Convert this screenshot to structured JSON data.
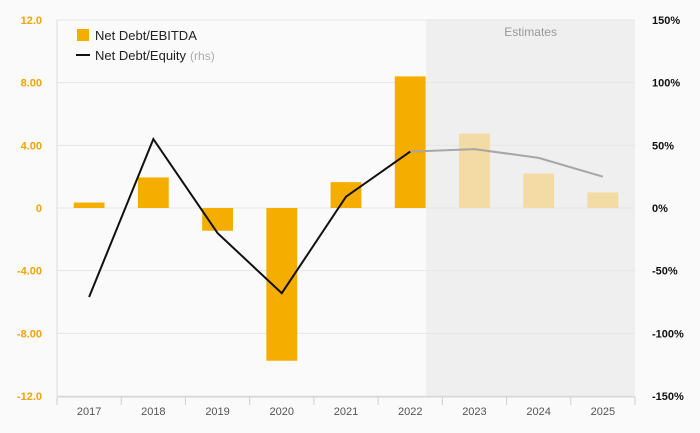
{
  "chart_data": {
    "type": "bar",
    "categories": [
      "2017",
      "2018",
      "2019",
      "2020",
      "2021",
      "2022",
      "2023",
      "2024",
      "2025"
    ],
    "series": [
      {
        "name": "Net Debt/EBITDA",
        "type": "bar",
        "axis": "left",
        "values": [
          0.35,
          1.95,
          -1.45,
          -9.75,
          1.65,
          8.4,
          4.75,
          2.2,
          1.0
        ],
        "estimate_from_index": 6
      },
      {
        "name": "Net Debt/Equity",
        "name_suffix": "(rhs)",
        "type": "line",
        "axis": "right",
        "values": [
          -71,
          55,
          -20,
          -68,
          9,
          45,
          47,
          40,
          25
        ],
        "estimate_from_index": 5
      }
    ],
    "y_left": {
      "min": -12,
      "max": 12,
      "ticks": [
        "-12.0",
        "-8.00",
        "-4.00",
        "0",
        "4.00",
        "8.00",
        "12.0"
      ]
    },
    "y_right": {
      "min": -150,
      "max": 150,
      "ticks": [
        "-150%",
        "-100%",
        "-50%",
        "0%",
        "50%",
        "100%",
        "150%"
      ]
    },
    "estimates_label": "Estimates",
    "estimates_start_category": "2023",
    "colors": {
      "bar": "#f5ad00",
      "bar_estimate": "#f3dba6",
      "line": "#111111",
      "line_estimate": "#a6a6a6",
      "estimate_band": "#efefef",
      "grid": "#e6e6e6",
      "left_tick": "#f0a500"
    },
    "legend_position": "top-left",
    "grid": true
  }
}
